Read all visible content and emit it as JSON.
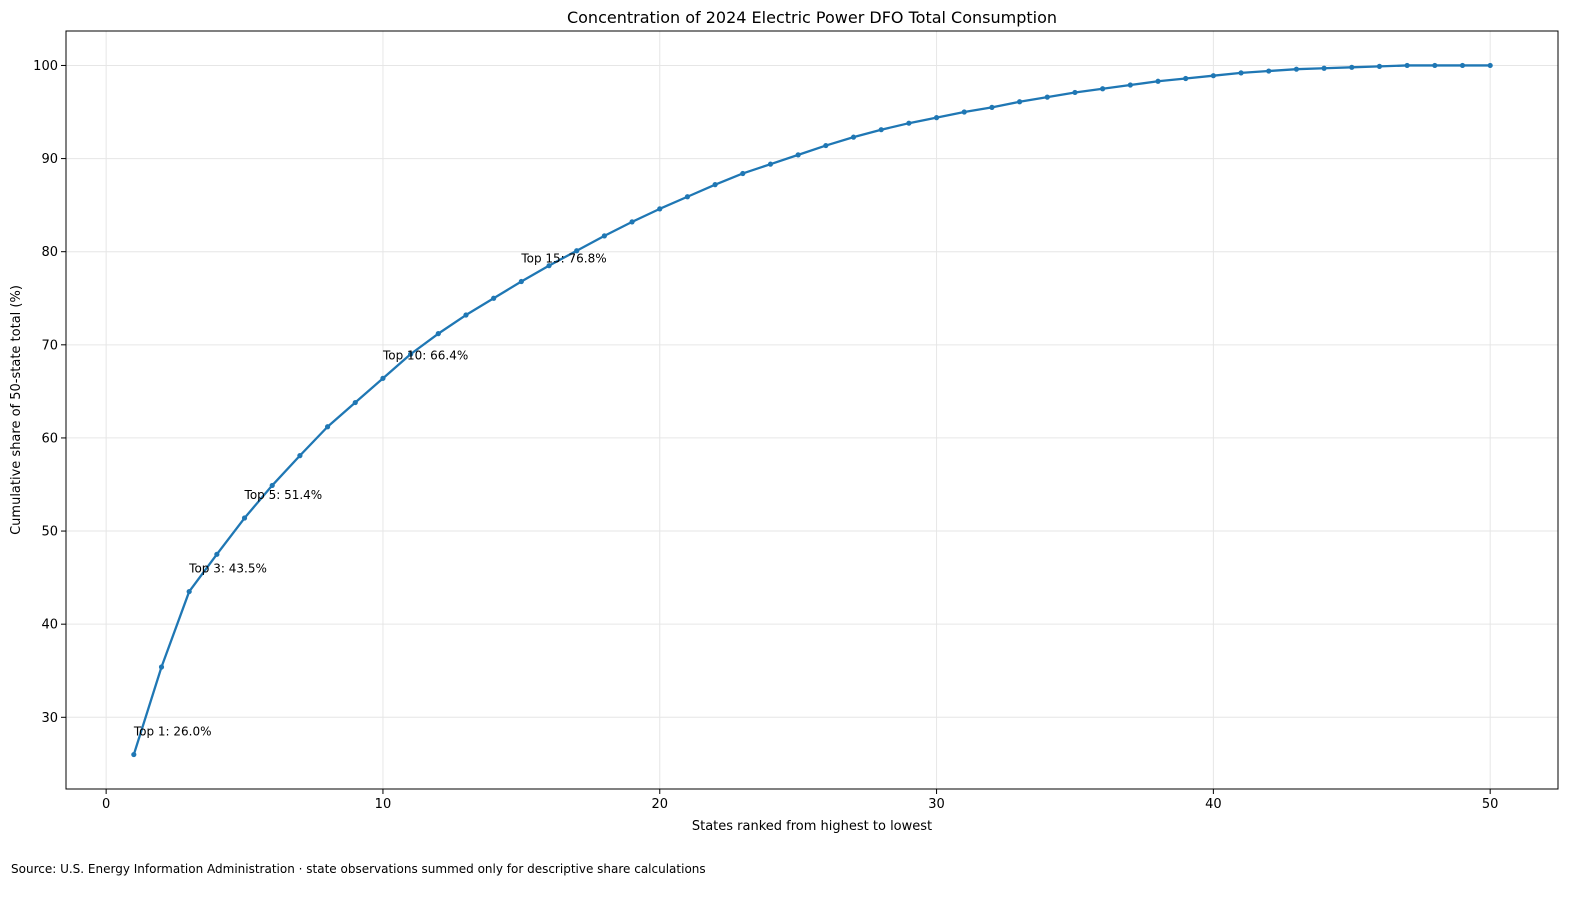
{
  "footer": {
    "source": "Source: U.S. Energy Information Administration · state observations summed only for descriptive share calculations"
  },
  "chart_data": {
    "type": "line",
    "title": "Concentration of 2024 Electric Power DFO Total Consumption",
    "xlabel": "States ranked from highest to lowest",
    "ylabel": "Cumulative share of 50-state total (%)",
    "xlim": [
      -1.45,
      52.45
    ],
    "ylim": [
      22.3,
      103.7
    ],
    "xticks": [
      0,
      10,
      20,
      30,
      40,
      50
    ],
    "yticks": [
      30,
      40,
      50,
      60,
      70,
      80,
      90,
      100
    ],
    "grid": true,
    "line_color": "#1f77b4",
    "series": [
      {
        "x": [
          1,
          2,
          3,
          4,
          5,
          6,
          7,
          8,
          9,
          10,
          11,
          12,
          13,
          14,
          15,
          16,
          17,
          18,
          19,
          20,
          21,
          22,
          23,
          24,
          25,
          26,
          27,
          28,
          29,
          30,
          31,
          32,
          33,
          34,
          35,
          36,
          37,
          38,
          39,
          40,
          41,
          42,
          43,
          44,
          45,
          46,
          47,
          48,
          49,
          50
        ],
        "values": [
          26.0,
          35.4,
          43.5,
          47.5,
          51.4,
          54.9,
          58.1,
          61.2,
          63.8,
          66.4,
          69.0,
          71.2,
          73.2,
          75.0,
          76.8,
          78.5,
          80.1,
          81.7,
          83.2,
          84.6,
          85.9,
          87.2,
          88.4,
          89.4,
          90.4,
          91.4,
          92.3,
          93.1,
          93.8,
          94.4,
          95.0,
          95.5,
          96.1,
          96.6,
          97.1,
          97.5,
          97.9,
          98.3,
          98.6,
          98.9,
          99.2,
          99.4,
          99.6,
          99.7,
          99.8,
          99.9,
          100.0,
          100.0,
          100.0,
          100.0
        ]
      }
    ],
    "annotations": [
      {
        "x": 1,
        "y": 26.0,
        "text": "Top 1: 26.0%"
      },
      {
        "x": 3,
        "y": 43.5,
        "text": "Top 3: 43.5%"
      },
      {
        "x": 5,
        "y": 51.4,
        "text": "Top 5: 51.4%"
      },
      {
        "x": 10,
        "y": 66.4,
        "text": "Top 10: 66.4%"
      },
      {
        "x": 15,
        "y": 76.8,
        "text": "Top 15: 76.8%"
      }
    ]
  }
}
